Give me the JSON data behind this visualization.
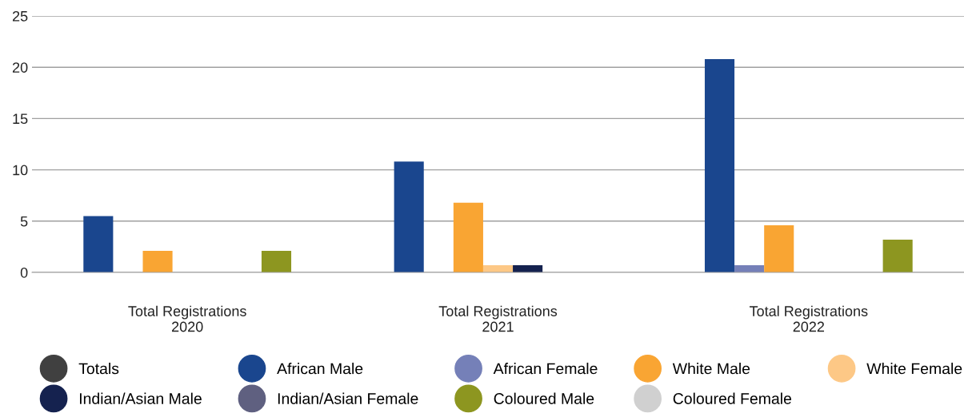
{
  "chart_data": {
    "type": "bar",
    "categories": [
      "Total Registrations\n2020",
      "Total Registrations\n2021",
      "Total Registrations\n2022"
    ],
    "series": [
      {
        "name": "Totals",
        "color": "#404040",
        "values": [
          0,
          0,
          0
        ]
      },
      {
        "name": "African Male",
        "color": "#1a468e",
        "values": [
          5.5,
          10.8,
          20.8
        ]
      },
      {
        "name": "African Female",
        "color": "#7580b8",
        "values": [
          0,
          0,
          0.7
        ]
      },
      {
        "name": "White Male",
        "color": "#f9a533",
        "values": [
          2.1,
          6.8,
          4.6
        ]
      },
      {
        "name": "White Female",
        "color": "#fdc886",
        "values": [
          0,
          0.7,
          0
        ]
      },
      {
        "name": "Indian/Asian Male",
        "color": "#15224f",
        "values": [
          0,
          0.7,
          0
        ]
      },
      {
        "name": "Indian/Asian Female",
        "color": "#5f6080",
        "values": [
          0,
          0,
          0
        ]
      },
      {
        "name": "Coloured Male",
        "color": "#8d9620",
        "values": [
          2.1,
          0,
          3.2
        ]
      },
      {
        "name": "Coloured Female",
        "color": "#d0d0d0",
        "values": [
          0,
          0,
          0
        ]
      }
    ],
    "ylim": [
      0,
      25
    ],
    "yticks": [
      0,
      5,
      10,
      15,
      20,
      25
    ],
    "grid": "y",
    "legend": "bottom",
    "marker": "circle"
  }
}
